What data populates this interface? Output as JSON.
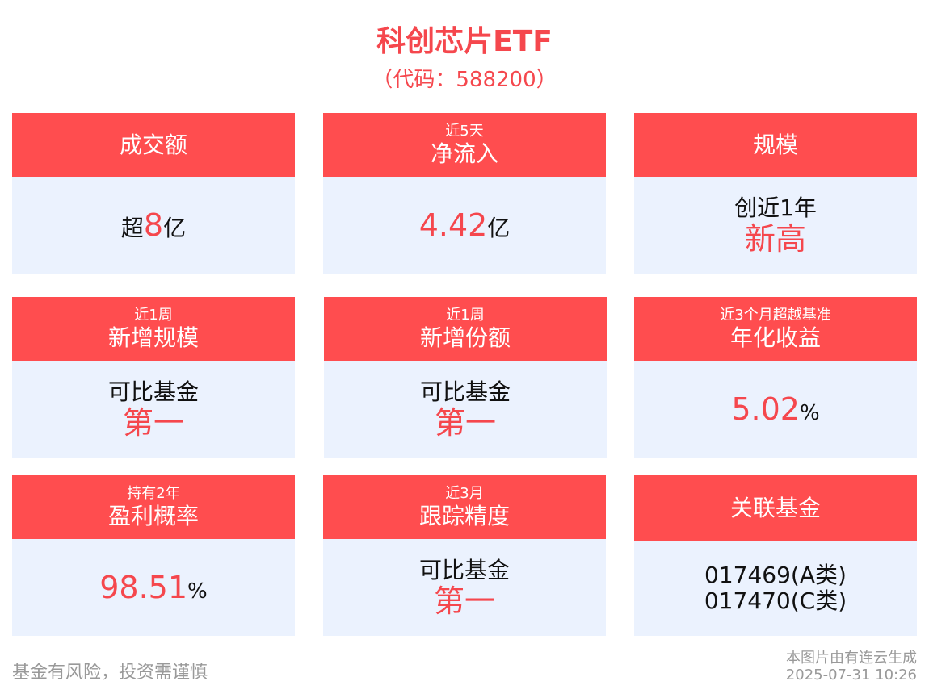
{
  "title": "科创芯片ETF",
  "code": "（代码：588200）",
  "colors": {
    "accent": "#ff4d4f",
    "card_bg": "#ebf2fe"
  },
  "cards": [
    {
      "sub": "",
      "label": "成交额",
      "pre": "超",
      "value": "8",
      "unit": "亿"
    },
    {
      "sub": "近5天",
      "label": "净流入",
      "pre": "",
      "value": "4.42",
      "unit": "亿"
    },
    {
      "sub": "",
      "label": "规模",
      "line1": "创近1年",
      "line2": "新高"
    },
    {
      "sub": "近1周",
      "label": "新增规模",
      "line1": "可比基金",
      "line2": "第一"
    },
    {
      "sub": "近1周",
      "label": "新增份额",
      "line1": "可比基金",
      "line2": "第一"
    },
    {
      "sub": "近3个月超越基准",
      "label": "年化收益",
      "pre": "",
      "value": "5.02",
      "unit": "%"
    },
    {
      "sub": "持有2年",
      "label": "盈利概率",
      "pre": "",
      "value": "98.51",
      "unit": "%"
    },
    {
      "sub": "近3月",
      "label": "跟踪精度",
      "line1": "可比基金",
      "line2": "第一"
    },
    {
      "sub": "",
      "label": "关联基金",
      "fund1": "017469(A类)",
      "fund2": "017470(C类)"
    }
  ],
  "footer": {
    "risk": "基金有风险，投资需谨慎",
    "source": "本图片由有连云生成",
    "timestamp": "2025-07-31 10:26"
  }
}
